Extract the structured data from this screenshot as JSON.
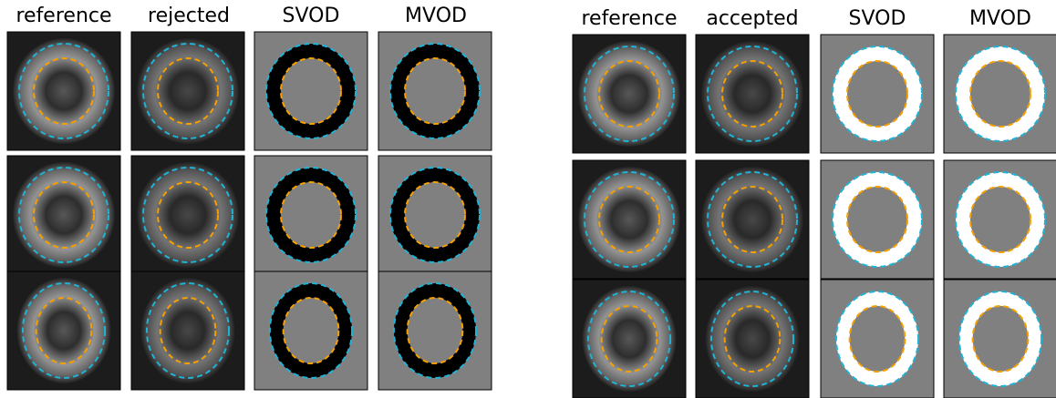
{
  "left_panel": {
    "headers": [
      "reference",
      "rejected",
      "SVOD",
      "MVOD"
    ]
  },
  "right_panel": {
    "headers": [
      "reference",
      "accepted",
      "SVOD",
      "MVOD"
    ]
  }
}
